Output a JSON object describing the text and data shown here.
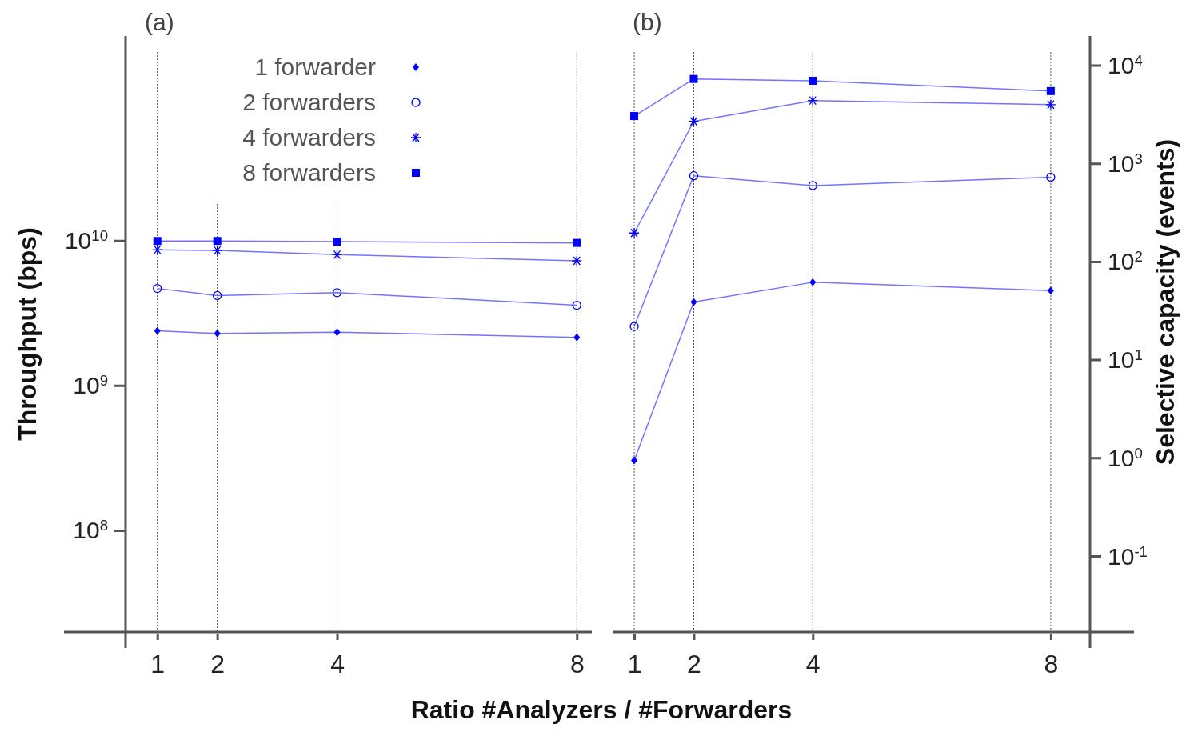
{
  "chart_data": [
    {
      "type": "line",
      "title": "(a)",
      "xlabel": "Ratio #Analyzers / #Forwarders",
      "ylabel": "Throughput (bps)",
      "x": [
        1,
        2,
        4,
        8
      ],
      "xlim": [
        0.47,
        8.25
      ],
      "xticks": [
        1,
        2,
        4,
        8
      ],
      "log": "y",
      "ylim": [
        20000000.0,
        260000000000.0
      ],
      "yticks": [
        {
          "value": 100000000.0,
          "label": "10$^{8}$"
        },
        {
          "value": 1000000000.0,
          "label": "10$^{9}$"
        },
        {
          "value": 10000000000.0,
          "label": "10$^{10}$"
        }
      ],
      "grid": "x",
      "legend": "top",
      "series": [
        {
          "name": "1 forwarder",
          "color": "#0000ff",
          "marker": "diamond",
          "values": [
            2400000000.0,
            2300000000.0,
            2350000000.0,
            2160000000.0
          ]
        },
        {
          "name": "2 forwarders",
          "color": "#0000ff",
          "marker": "circle",
          "values": [
            4700000000.0,
            4200000000.0,
            4400000000.0,
            3600000000.0
          ]
        },
        {
          "name": "4 forwarders",
          "color": "#0000ff",
          "marker": "cross",
          "values": [
            8700000000.0,
            8600000000.0,
            8050000000.0,
            7300000000.0
          ]
        },
        {
          "name": "8 forwarders",
          "color": "#0000ff",
          "marker": "square",
          "values": [
            10000000000.0,
            10000000000.0,
            9900000000.0,
            9700000000.0
          ]
        }
      ]
    },
    {
      "type": "line",
      "title": "(b)",
      "y2label": "Selective capacity (events)",
      "x": [
        1,
        2,
        4,
        8
      ],
      "xlim": [
        0.65,
        8.66
      ],
      "xticks": [
        1,
        2,
        4,
        8
      ],
      "log": "y2",
      "y2lim": [
        0.017,
        20000.0
      ],
      "y2ticks": [
        {
          "value": 0.1,
          "label": "10$^{-1}$"
        },
        {
          "value": 1,
          "label": "10$^{0}$"
        },
        {
          "value": 10,
          "label": "10$^{1}$"
        },
        {
          "value": 100,
          "label": "10$^{2}$"
        },
        {
          "value": 1000,
          "label": "10$^{3}$"
        },
        {
          "value": 10000,
          "label": "10$^{4}$"
        }
      ],
      "grid": "x",
      "series": [
        {
          "color": "#0000ff",
          "marker": "diamond",
          "axis": "y2",
          "values": [
            0.95,
            39,
            62,
            51
          ]
        },
        {
          "color": "#0000ff",
          "marker": "circle",
          "axis": "y2",
          "values": [
            22,
            755,
            600,
            730
          ]
        },
        {
          "color": "#0000ff",
          "marker": "cross",
          "axis": "y2",
          "values": [
            197,
            2700,
            4400,
            4000
          ]
        },
        {
          "color": "#0000ff",
          "marker": "square",
          "axis": "y2",
          "values": [
            3060,
            7300,
            7000,
            5500
          ]
        }
      ]
    }
  ]
}
